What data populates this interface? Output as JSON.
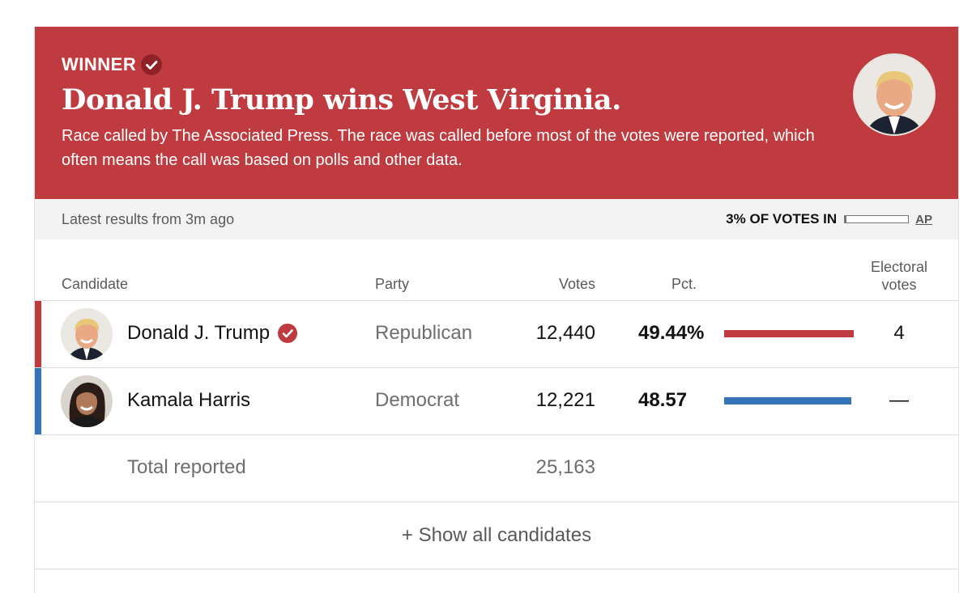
{
  "banner": {
    "winner_label": "WINNER",
    "headline": "Donald J. Trump wins West Virginia.",
    "subtext": "Race called by The Associated Press. The race was called before most of the votes were reported, which often means the call was based on polls and other data.",
    "background_color": "#bf3b3f"
  },
  "status": {
    "latest": "Latest results from 3m ago",
    "votes_in_label": "3% OF VOTES IN",
    "votes_in_fraction": 0.03,
    "source_link": "AP"
  },
  "table": {
    "headers": {
      "candidate": "Candidate",
      "party": "Party",
      "votes": "Votes",
      "pct": "Pct.",
      "electoral_line1": "Electoral",
      "electoral_line2": "votes"
    },
    "rows": [
      {
        "name": "Donald J. Trump",
        "winner": true,
        "party": "Republican",
        "votes": "12,440",
        "pct": "49.44%",
        "pct_value": 49.44,
        "electoral": "4",
        "color": "#bf3b3f",
        "photo_icon": "trump-avatar"
      },
      {
        "name": "Kamala Harris",
        "winner": false,
        "party": "Democrat",
        "votes": "12,221",
        "pct": "48.57",
        "pct_value": 48.57,
        "electoral": "—",
        "color": "#3574b8",
        "photo_icon": "harris-avatar"
      }
    ],
    "total": {
      "label": "Total reported",
      "votes": "25,163"
    }
  },
  "show_all": "+ Show all candidates",
  "icons": {
    "winner_check": "check-circle-icon"
  }
}
